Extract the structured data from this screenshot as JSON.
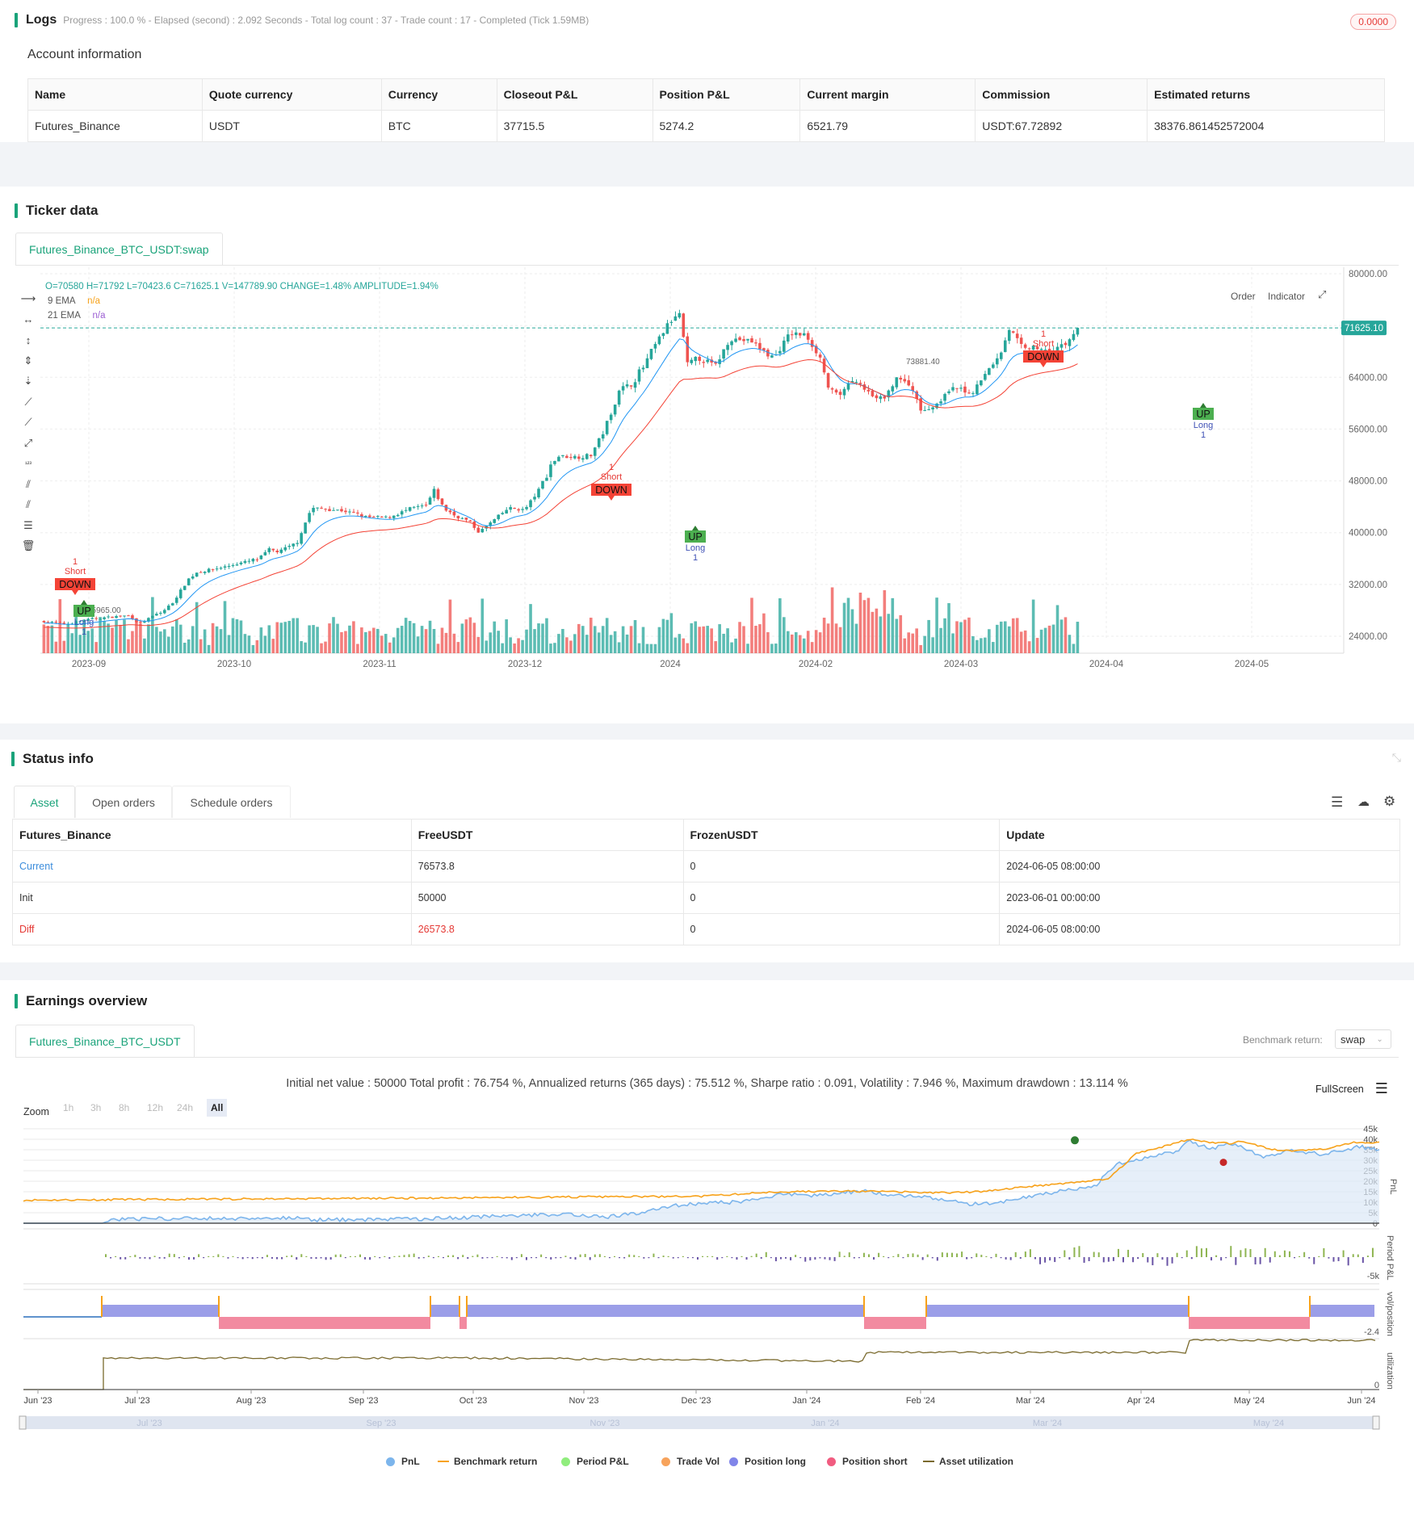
{
  "logs": {
    "title": "Logs",
    "summary": "Progress : 100.0 % - Elapsed (second) : 2.092  Seconds - Total log count : 37 - Trade count : 17 - Completed (Tick 1.59MB)",
    "badge": "0.0000"
  },
  "account": {
    "title": "Account information",
    "headers": [
      "Name",
      "Quote currency",
      "Currency",
      "Closeout P&L",
      "Position P&L",
      "Current margin",
      "Commission",
      "Estimated returns"
    ],
    "row": [
      "Futures_Binance",
      "USDT",
      "BTC",
      "37715.5",
      "5274.2",
      "6521.79",
      "USDT:67.72892",
      "38376.861452572004"
    ]
  },
  "ticker": {
    "title": "Ticker data",
    "tab": "Futures_Binance_BTC_USDT:swap",
    "ohlc": "O=70580 H=71792 L=70423.6 C=71625.1 V=147789.90 CHANGE=1.48% AMPLITUDE=1.94%",
    "ema9_label": "9 EMA",
    "ema9_value": "n/a",
    "ema21_label": "21 EMA",
    "ema21_value": "n/a",
    "order_btn": "Order",
    "indicator_btn": "Indicator",
    "price_tag": "71625.10",
    "high_label": "73881.40",
    "low_label": "25965.00",
    "y_ticks": [
      "80000.00",
      "72000.00",
      "64000.00",
      "56000.00",
      "48000.00",
      "40000.00",
      "32000.00",
      "24000.00"
    ],
    "x_ticks": [
      "2023-09",
      "2023-10",
      "2023-11",
      "2023-12",
      "2024",
      "2024-02",
      "2024-03",
      "2024-04",
      "2024-05"
    ],
    "signals": {
      "short_count": "1",
      "short": "Short",
      "down": "DOWN",
      "up": "UP",
      "long": "Long",
      "long_count": "1"
    }
  },
  "status": {
    "title": "Status info",
    "tabs": [
      "Asset",
      "Open orders",
      "Schedule orders"
    ],
    "headers": [
      "Futures_Binance",
      "FreeUSDT",
      "FrozenUSDT",
      "Update"
    ],
    "rows": [
      [
        "Current",
        "76573.8",
        "0",
        "2024-06-05 08:00:00"
      ],
      [
        "Init",
        "50000",
        "0",
        "2023-06-01 00:00:00"
      ],
      [
        "Diff",
        "26573.8",
        "0",
        "2024-06-05 08:00:00"
      ]
    ]
  },
  "earnings": {
    "title": "Earnings overview",
    "tab": "Futures_Binance_BTC_USDT",
    "benchmark_label": "Benchmark return:",
    "benchmark_value": "swap",
    "summary": "Initial net value : 50000 Total profit : 76.754 %, Annualized returns (365 days) : 75.512 %, Sharpe ratio : 0.091, Volatility : 7.946 %, Maximum drawdown : 13.114 %",
    "fullscreen": "FullScreen",
    "zoom_label": "Zoom",
    "zoom_options": [
      "1h",
      "3h",
      "8h",
      "12h",
      "24h",
      "All"
    ],
    "pnl_ticks": [
      "45k",
      "40k",
      "35k",
      "30k",
      "25k",
      "20k",
      "15k",
      "10k",
      "5k",
      "0"
    ],
    "axis_pnl": "PnL",
    "axis_period": "Period P&L",
    "axis_position": "vol/position",
    "axis_util": "utilization",
    "period_tick": "-5k",
    "position_tick": "-2.4",
    "util_tick": "0",
    "x_ticks": [
      "Jun '23",
      "Jul '23",
      "Aug '23",
      "Sep '23",
      "Oct '23",
      "Nov '23",
      "Dec '23",
      "Jan '24",
      "Feb '24",
      "Mar '24",
      "Apr '24",
      "May '24",
      "Jun '24"
    ],
    "nav_ticks": [
      "Jul '23",
      "Sep '23",
      "Nov '23",
      "Jan '24",
      "Mar '24",
      "May '24"
    ],
    "legend": [
      "PnL",
      "Benchmark return",
      "Period P&L",
      "Trade Vol",
      "Position long",
      "Position short",
      "Asset utilization"
    ]
  },
  "colors": {
    "accent": "#1aa37a",
    "up": "#26a69a",
    "down": "#ef5350",
    "ema9": "#2196f3",
    "ema21": "#f44336",
    "pnl": "#7cb5ec",
    "benchmark": "#f7a21b",
    "long": "#9b9ee8",
    "short": "#f28aa0"
  }
}
